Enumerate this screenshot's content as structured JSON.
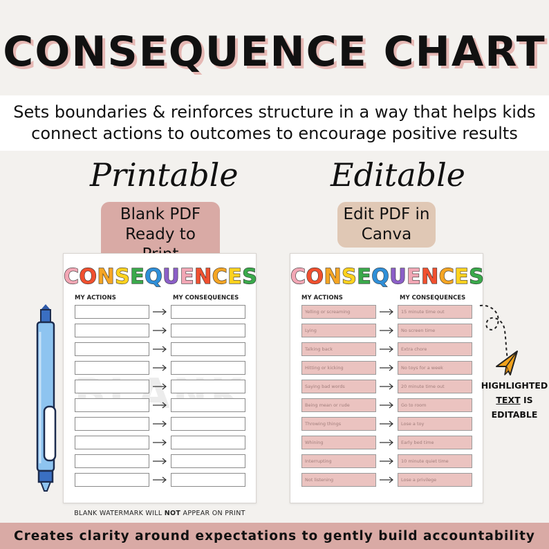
{
  "title": "CONSEQUENCE CHART",
  "subtitle": {
    "line1": "Sets boundaries & reinforces structure in a way that helps kids",
    "line2": "connect actions to outcomes to encourage positive results"
  },
  "printable": {
    "label": "Printable",
    "pill_line1": "Blank PDF",
    "pill_line2": "Ready to Print"
  },
  "editable": {
    "label": "Editable",
    "pill_line1": "Edit PDF in",
    "pill_line2": "Canva"
  },
  "sheet": {
    "title_letters": [
      "C",
      "O",
      "N",
      "S",
      "E",
      "Q",
      "U",
      "E",
      "N",
      "C",
      "E",
      "S"
    ],
    "title_colors": [
      "#f2a7b5",
      "#f0502f",
      "#f5a524",
      "#ffd21f",
      "#3aa94b",
      "#2f8fd8",
      "#8b5fc7",
      "#f2a7b5",
      "#f0502f",
      "#f5a524",
      "#ffd21f",
      "#3aa94b"
    ],
    "col_actions": "MY ACTIONS",
    "col_consequences": "MY CONSEQUENCES"
  },
  "blank_sheet": {
    "watermark": "BLANK",
    "row_count": 10
  },
  "edit_sheet": {
    "rows": [
      {
        "action": "Yelling or screaming",
        "consequence": "15 minute time out"
      },
      {
        "action": "Lying",
        "consequence": "No screen time"
      },
      {
        "action": "Talking back",
        "consequence": "Extra chore"
      },
      {
        "action": "Hitting or kicking",
        "consequence": "No toys for a week"
      },
      {
        "action": "Saying bad words",
        "consequence": "20 minute time out"
      },
      {
        "action": "Being mean or rude",
        "consequence": "Go to room"
      },
      {
        "action": "Throwing things",
        "consequence": "Lose a toy"
      },
      {
        "action": "Whining",
        "consequence": "Early bed time"
      },
      {
        "action": "Interrupting",
        "consequence": "10 minute quiet time"
      },
      {
        "action": "Not listening",
        "consequence": "Lose a privilege"
      }
    ]
  },
  "watermark_note": {
    "before": "BLANK WATERMARK WILL ",
    "emphasis": "NOT",
    "after": " APPEAR ON PRINT"
  },
  "annotation": {
    "line1": "HIGHLIGHTED",
    "line2_u": "TEXT",
    "line2_rest": " IS",
    "line3": "EDITABLE"
  },
  "footer": "Creates clarity around expectations to gently build accountability",
  "colors": {
    "background": "#f3f1ee",
    "accent_pink": "#d9aaa5",
    "accent_tan": "#e0c8b5",
    "highlight": "#ebc3c0",
    "pen_blue": "#8ec4f0"
  },
  "icons": [
    "pen-icon",
    "paper-plane-icon",
    "arrow-right-icon"
  ]
}
